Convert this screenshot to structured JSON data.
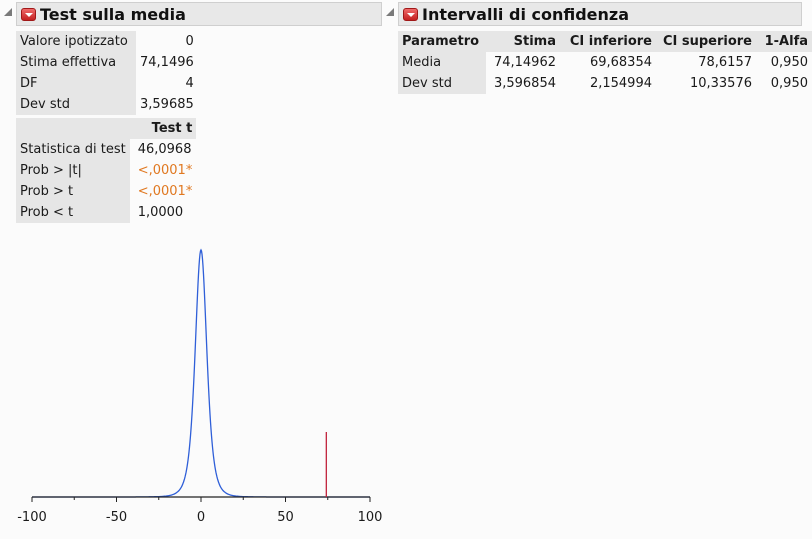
{
  "left_panel": {
    "title": "Test sulla media",
    "summary": [
      {
        "label": "Valore ipotizzato",
        "value": "0"
      },
      {
        "label": "Stima effettiva",
        "value": "74,1496"
      },
      {
        "label": "DF",
        "value": "4"
      },
      {
        "label": "Dev std",
        "value": "3,59685"
      }
    ],
    "test_header": "Test t",
    "test_rows": [
      {
        "label": "Statistica di test",
        "value": "46,0968",
        "highlight": false
      },
      {
        "label": "Prob > |t|",
        "value": "<,0001*",
        "highlight": true
      },
      {
        "label": "Prob > t",
        "value": "<,0001*",
        "highlight": true
      },
      {
        "label": "Prob < t",
        "value": "1,0000",
        "highlight": false
      }
    ]
  },
  "right_panel": {
    "title": "Intervalli di confidenza",
    "columns": [
      "Parametro",
      "Stima",
      "CI inferiore",
      "CI superiore",
      "1-Alfa"
    ],
    "rows": [
      [
        "Media",
        "74,14962",
        "69,68354",
        "78,6157",
        "0,950"
      ],
      [
        "Dev std",
        "3,596854",
        "2,154994",
        "10,33576",
        "0,950"
      ]
    ]
  },
  "chart_data": {
    "type": "line",
    "description_series": "t density centered at hypothesized value with marker at estimate",
    "x_ticks": [
      "-100",
      "-50",
      "0",
      "50",
      "100"
    ],
    "xlim": [
      -100,
      100
    ],
    "density_center": 0,
    "density_scale": 3.59685,
    "df": 4,
    "marker_x": 74.1496,
    "colors": {
      "curve": "#2f5fd8",
      "marker": "#c0203a",
      "axis": "#222222"
    }
  }
}
